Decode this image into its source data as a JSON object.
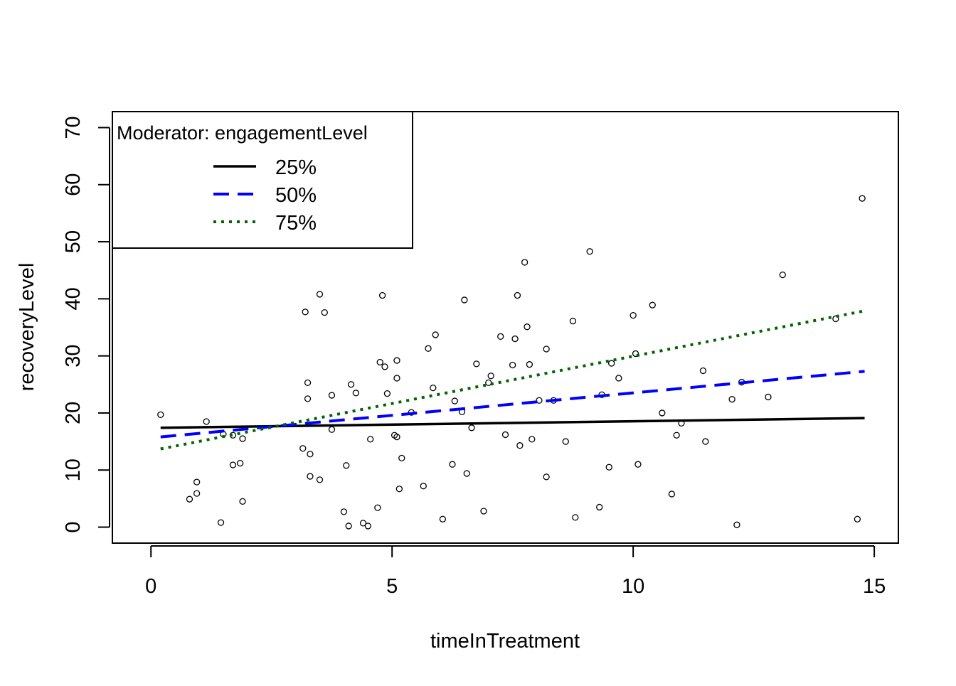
{
  "chart_data": {
    "type": "scatter",
    "title": "",
    "xlabel": "timeInTreatment",
    "ylabel": "recoveryLevel",
    "xlim": [
      -0.8,
      15.5
    ],
    "ylim": [
      -2.8,
      72.8
    ],
    "x_ticks": [
      0,
      5,
      10,
      15
    ],
    "y_ticks": [
      0,
      10,
      20,
      30,
      40,
      50,
      60,
      70
    ],
    "grid": false,
    "legend": {
      "placement": "top-left",
      "title": "Moderator: engagementLevel",
      "entries": [
        {
          "label": "25%",
          "color": "#000000",
          "dash": "solid"
        },
        {
          "label": "50%",
          "color": "#0000FF",
          "dash": "dashed"
        },
        {
          "label": "75%",
          "color": "#006400",
          "dash": "dotted"
        }
      ]
    },
    "lines": [
      {
        "name": "25%",
        "color": "#000000",
        "dash": "solid",
        "x": [
          0.2,
          14.8
        ],
        "y": [
          17.4,
          19.1
        ]
      },
      {
        "name": "50%",
        "color": "#0000FF",
        "dash": "dashed",
        "x": [
          0.2,
          14.8
        ],
        "y": [
          15.8,
          27.3
        ]
      },
      {
        "name": "75%",
        "color": "#006400",
        "dash": "dotted",
        "x": [
          0.2,
          14.8
        ],
        "y": [
          13.7,
          37.9
        ]
      }
    ],
    "points": [
      [
        0.2,
        19.7
      ],
      [
        0.8,
        4.9
      ],
      [
        0.95,
        7.9
      ],
      [
        0.95,
        5.9
      ],
      [
        1.15,
        18.5
      ],
      [
        1.45,
        0.8
      ],
      [
        1.5,
        16.3
      ],
      [
        1.7,
        16.1
      ],
      [
        1.7,
        10.9
      ],
      [
        1.85,
        11.2
      ],
      [
        1.9,
        4.5
      ],
      [
        1.9,
        15.5
      ],
      [
        3.15,
        13.8
      ],
      [
        3.2,
        37.7
      ],
      [
        3.25,
        25.3
      ],
      [
        3.25,
        22.5
      ],
      [
        3.3,
        12.8
      ],
      [
        3.3,
        8.9
      ],
      [
        3.5,
        8.3
      ],
      [
        3.5,
        40.8
      ],
      [
        3.6,
        37.6
      ],
      [
        3.75,
        23.1
      ],
      [
        3.75,
        17.1
      ],
      [
        4.0,
        2.7
      ],
      [
        4.05,
        10.8
      ],
      [
        4.1,
        0.2
      ],
      [
        4.15,
        25.0
      ],
      [
        4.25,
        23.5
      ],
      [
        4.4,
        0.7
      ],
      [
        4.5,
        0.2
      ],
      [
        4.55,
        15.4
      ],
      [
        4.7,
        3.4
      ],
      [
        4.75,
        28.9
      ],
      [
        4.8,
        40.6
      ],
      [
        4.85,
        28.1
      ],
      [
        4.9,
        23.4
      ],
      [
        5.05,
        16.1
      ],
      [
        5.1,
        29.2
      ],
      [
        5.1,
        26.1
      ],
      [
        5.1,
        15.8
      ],
      [
        5.15,
        6.7
      ],
      [
        5.2,
        12.1
      ],
      [
        5.4,
        20.1
      ],
      [
        5.65,
        7.2
      ],
      [
        5.75,
        31.3
      ],
      [
        5.85,
        24.4
      ],
      [
        5.9,
        33.7
      ],
      [
        6.05,
        1.4
      ],
      [
        6.25,
        11.0
      ],
      [
        6.3,
        22.1
      ],
      [
        6.45,
        20.2
      ],
      [
        6.5,
        39.8
      ],
      [
        6.55,
        9.4
      ],
      [
        6.65,
        17.4
      ],
      [
        6.75,
        28.6
      ],
      [
        6.9,
        2.8
      ],
      [
        7.0,
        25.3
      ],
      [
        7.05,
        26.5
      ],
      [
        7.25,
        33.4
      ],
      [
        7.35,
        16.2
      ],
      [
        7.5,
        28.4
      ],
      [
        7.55,
        33.0
      ],
      [
        7.6,
        40.6
      ],
      [
        7.65,
        14.3
      ],
      [
        7.75,
        46.4
      ],
      [
        7.8,
        35.1
      ],
      [
        7.85,
        28.5
      ],
      [
        7.9,
        15.4
      ],
      [
        8.05,
        22.2
      ],
      [
        8.2,
        8.8
      ],
      [
        8.2,
        31.2
      ],
      [
        8.35,
        22.2
      ],
      [
        8.6,
        15.0
      ],
      [
        8.75,
        36.1
      ],
      [
        8.8,
        1.7
      ],
      [
        9.1,
        48.3
      ],
      [
        9.3,
        3.5
      ],
      [
        9.35,
        23.2
      ],
      [
        9.5,
        10.5
      ],
      [
        9.55,
        28.7
      ],
      [
        9.7,
        26.1
      ],
      [
        10.0,
        37.1
      ],
      [
        10.05,
        30.4
      ],
      [
        10.1,
        11.0
      ],
      [
        10.4,
        38.9
      ],
      [
        10.6,
        20.0
      ],
      [
        10.8,
        5.8
      ],
      [
        10.9,
        16.1
      ],
      [
        11.0,
        18.2
      ],
      [
        11.45,
        27.4
      ],
      [
        11.5,
        15.0
      ],
      [
        12.05,
        22.4
      ],
      [
        12.15,
        0.4
      ],
      [
        12.25,
        25.4
      ],
      [
        12.8,
        22.8
      ],
      [
        13.1,
        44.2
      ],
      [
        14.2,
        36.5
      ],
      [
        14.65,
        1.4
      ],
      [
        14.75,
        57.6
      ]
    ]
  }
}
